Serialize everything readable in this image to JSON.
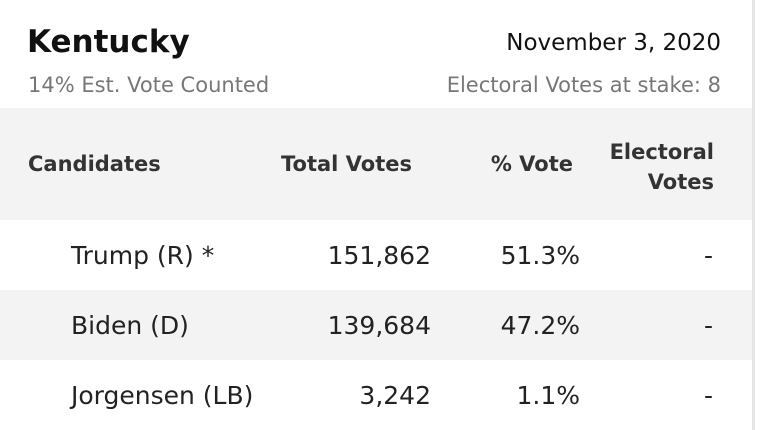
{
  "header": {
    "title": "Kentucky",
    "date": "November 3, 2020",
    "counted": "14% Est. Vote Counted",
    "electoral": "Electoral Votes at stake: 8"
  },
  "table": {
    "columns": [
      "Candidates",
      "Total Votes",
      "% Vote",
      "Electoral Votes"
    ],
    "rows": [
      [
        "Trump (R) *",
        "151,862",
        "51.3%",
        "-"
      ],
      [
        "Biden (D)",
        "139,684",
        "47.2%",
        "-"
      ],
      [
        "Jorgensen (LB)",
        "3,242",
        "1.1%",
        "-"
      ]
    ]
  }
}
